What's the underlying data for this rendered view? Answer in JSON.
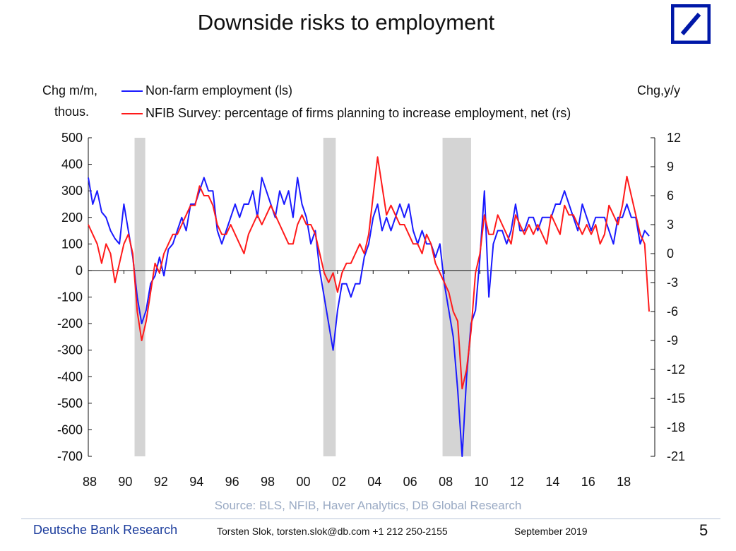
{
  "title": "Downside risks to employment",
  "footer": {
    "source": "Source: BLS, NFIB, Haver Analytics, DB Global Research",
    "brand": "Deutsche Bank Research",
    "author": "Torsten Slok, torsten.slok@db.com  +1 212 250-2155",
    "date": "September 2019",
    "page": "5"
  },
  "logo": {
    "text": "Deutsche Bank",
    "color": "#0018a8"
  },
  "chart_data": {
    "type": "line",
    "title": "Downside risks to employment",
    "left_axis_label": [
      "Chg m/m,",
      "thous."
    ],
    "right_axis_label": "Chg,y/y",
    "x_tick_labels": [
      "88",
      "90",
      "92",
      "94",
      "96",
      "98",
      "00",
      "02",
      "04",
      "06",
      "08",
      "10",
      "12",
      "14",
      "16",
      "18"
    ],
    "x_tick_years": [
      1988,
      1990,
      1992,
      1994,
      1996,
      1998,
      2000,
      2002,
      2004,
      2006,
      2008,
      2010,
      2012,
      2014,
      2016,
      2018
    ],
    "xlim": [
      1988,
      2019.7
    ],
    "y_left": {
      "ylim": [
        -700,
        500
      ],
      "ticks": [
        500,
        400,
        300,
        200,
        100,
        0,
        -100,
        -200,
        -300,
        -400,
        -500,
        -600,
        -700
      ]
    },
    "y_right": {
      "ylim": [
        -21,
        12
      ],
      "ticks": [
        12,
        9,
        6,
        3,
        0,
        -3,
        -6,
        -9,
        -12,
        -15,
        -18,
        -21
      ]
    },
    "recessions": [
      [
        1990.6,
        1991.2
      ],
      [
        2001.2,
        2001.9
      ],
      [
        2007.9,
        2009.5
      ]
    ],
    "recession_color": "#d4d4d4",
    "series": [
      {
        "name": "Non-farm employment (ls)",
        "axis": "left",
        "color": "#1a1aff",
        "start": 1988,
        "step_years": 0.25,
        "values": [
          350,
          250,
          300,
          220,
          200,
          150,
          120,
          100,
          250,
          150,
          50,
          -100,
          -200,
          -150,
          -50,
          -20,
          50,
          -20,
          80,
          100,
          150,
          200,
          150,
          250,
          250,
          300,
          350,
          300,
          300,
          150,
          100,
          150,
          200,
          250,
          200,
          250,
          250,
          300,
          200,
          350,
          300,
          250,
          200,
          300,
          250,
          300,
          200,
          350,
          250,
          200,
          100,
          150,
          0,
          -100,
          -200,
          -300,
          -150,
          -50,
          -50,
          -100,
          -50,
          -50,
          50,
          100,
          200,
          250,
          150,
          200,
          150,
          200,
          250,
          200,
          250,
          150,
          100,
          150,
          100,
          100,
          50,
          100,
          -50,
          -150,
          -250,
          -450,
          -700,
          -400,
          -200,
          -150,
          50,
          300,
          -100,
          100,
          150,
          150,
          100,
          150,
          250,
          150,
          150,
          200,
          200,
          150,
          200,
          200,
          200,
          250,
          250,
          300,
          250,
          200,
          150,
          250,
          200,
          150,
          200,
          200,
          200,
          150,
          100,
          200,
          200,
          250,
          200,
          200,
          100,
          150,
          130
        ]
      },
      {
        "name": "NFIB Survey: percentage of firms planning to increase employment, net (rs)",
        "axis": "right",
        "color": "#ff1a1a",
        "start": 1988,
        "step_years": 0.25,
        "values": [
          3,
          2,
          1,
          -1,
          1,
          0,
          -3,
          -1,
          1,
          2,
          0,
          -6,
          -9,
          -7,
          -4,
          -1,
          -2,
          0,
          1,
          2,
          2,
          3,
          4,
          5,
          5,
          7,
          6,
          6,
          5,
          3,
          2,
          2,
          3,
          2,
          1,
          0,
          2,
          3,
          4,
          3,
          4,
          5,
          4,
          3,
          2,
          1,
          1,
          3,
          4,
          3,
          3,
          2,
          0,
          -2,
          -3,
          -2,
          -4,
          -2,
          -1,
          -1,
          0,
          1,
          0,
          2,
          6,
          10,
          7,
          4,
          5,
          4,
          3,
          3,
          2,
          1,
          1,
          0,
          2,
          1,
          -1,
          -2,
          -3,
          -4,
          -6,
          -7,
          -14,
          -12,
          -8,
          -2,
          0,
          4,
          2,
          2,
          4,
          3,
          2,
          1,
          4,
          3,
          2,
          3,
          2,
          3,
          2,
          1,
          4,
          3,
          2,
          5,
          4,
          4,
          3,
          2,
          3,
          2,
          3,
          1,
          2,
          5,
          4,
          3,
          5,
          8,
          6,
          4,
          2,
          1,
          -6
        ]
      }
    ]
  }
}
